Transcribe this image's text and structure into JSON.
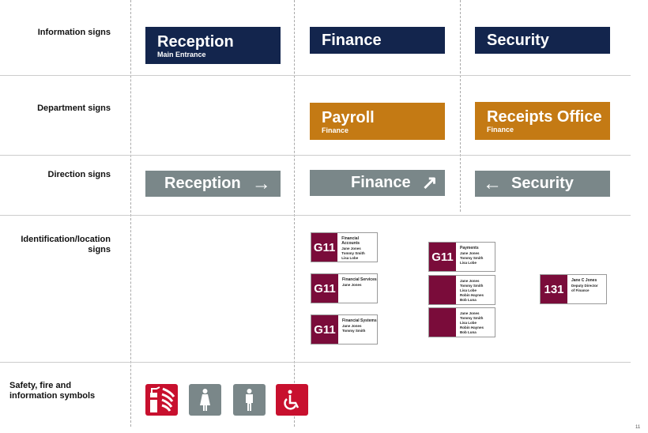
{
  "row_labels": [
    "Information signs",
    "Department signs",
    "Direction signs",
    "Identification/location signs",
    "Safety, fire and information symbols"
  ],
  "information": [
    {
      "title": "Reception",
      "subtitle": "Main Entrance"
    },
    {
      "title": "Finance"
    },
    {
      "title": "Security"
    }
  ],
  "department": [
    {
      "title": "Payroll",
      "subtitle": "Finance"
    },
    {
      "title": "Receipts Office",
      "subtitle": "Finance"
    }
  ],
  "direction": [
    {
      "label": "Reception",
      "arrow": "→"
    },
    {
      "label": "Finance",
      "arrow": "↗"
    },
    {
      "label": "Security",
      "arrow": "←"
    }
  ],
  "identification": [
    {
      "number": "G11",
      "heading": "Financial Accounts",
      "names": [
        "Jane Jones",
        "Tommy Smith",
        "Lisa Lobe"
      ]
    },
    {
      "number": "G11",
      "heading": "Financial Services",
      "names": [
        "Jane Jones"
      ]
    },
    {
      "number": "G11",
      "heading": "Financial Systems",
      "names": [
        "Jane Jones",
        "Tommy Smith"
      ]
    },
    {
      "number": "G11",
      "heading": "Payments",
      "names": [
        "Jane Jones",
        "Tommy Smith",
        "Lisa Lobe"
      ]
    },
    {
      "number": "",
      "heading": "",
      "names": [
        "Jane Jones",
        "Tommy Smith",
        "Lisa Lobe",
        "Robin Haynes",
        "Bob Luna"
      ]
    },
    {
      "number": "",
      "heading": "",
      "names": [
        "Jane Jones",
        "Tommy Smith",
        "Lisa Lobe",
        "Robin Haynes",
        "Bob Luna"
      ]
    },
    {
      "number": "131",
      "heading": "Jane C Jones",
      "names": [
        "Deputy Director",
        "of Finance"
      ]
    }
  ],
  "symbols": [
    "fire-extinguisher-icon",
    "female-toilet-icon",
    "male-toilet-icon",
    "wheelchair-icon"
  ],
  "colors": {
    "navy": "#13254d",
    "orange": "#c47a14",
    "grey": "#7a8789",
    "maroon": "#7a0c3a",
    "red": "#c8102e"
  },
  "page_number": "11"
}
